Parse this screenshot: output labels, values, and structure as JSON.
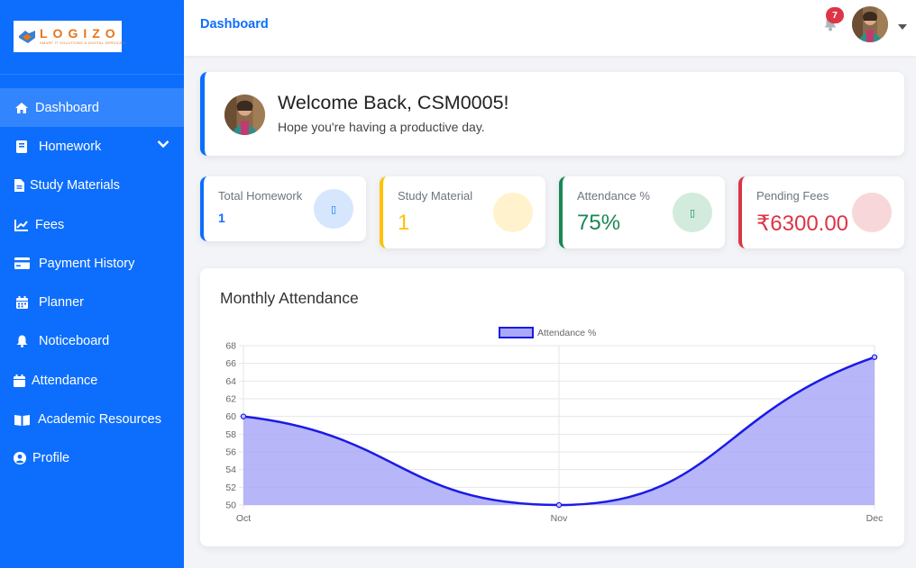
{
  "brand": {
    "name": "LOGIZO",
    "tagline": "SMART IT SOLUTIONS & DIGITAL SERVICES"
  },
  "sidebar": {
    "items": [
      {
        "label": "Dashboard",
        "icon": "home-icon",
        "active": true
      },
      {
        "label": "Homework",
        "icon": "book-icon",
        "expandable": true
      },
      {
        "label": "Study Materials",
        "icon": "file-icon"
      },
      {
        "label": "Fees",
        "icon": "chart-line-icon"
      },
      {
        "label": "Payment History",
        "icon": "credit-card-icon"
      },
      {
        "label": "Planner",
        "icon": "calendar-icon"
      },
      {
        "label": "Noticeboard",
        "icon": "bell-icon"
      },
      {
        "label": "Attendance",
        "icon": "calendar-check-icon"
      },
      {
        "label": "Academic Resources",
        "icon": "open-book-icon"
      },
      {
        "label": "Profile",
        "icon": "user-circle-icon"
      }
    ]
  },
  "topbar": {
    "title": "Dashboard",
    "notification_count": "7"
  },
  "welcome": {
    "title": "Welcome Back, CSM0005!",
    "subtitle": "Hope you're having a productive day."
  },
  "stats": [
    {
      "label": "Total Homework",
      "value": "1",
      "icon": "tasks-icon",
      "icon_glyph": "▯",
      "color": "#0d6efd"
    },
    {
      "label": "Study Material",
      "value": "1",
      "icon": "book-icon",
      "icon_glyph": "",
      "color": "#ffc107"
    },
    {
      "label": "Attendance %",
      "value": "75%",
      "icon": "calendar-icon",
      "icon_glyph": "▯",
      "color": "#198754"
    },
    {
      "label": "Pending Fees",
      "value": "₹6300.00",
      "icon": "money-icon",
      "icon_glyph": "",
      "color": "#dc3545"
    }
  ],
  "chart_data": {
    "type": "area",
    "title": "Monthly Attendance",
    "categories": [
      "Oct",
      "Nov",
      "Dec"
    ],
    "series": [
      {
        "name": "Attendance %",
        "values": [
          60,
          50,
          66.7
        ]
      }
    ],
    "ylim": [
      50,
      68
    ],
    "yticks": [
      "50",
      "52",
      "54",
      "56",
      "58",
      "60",
      "62",
      "64",
      "66",
      "68"
    ],
    "grid": true,
    "legend": "top",
    "line_color": "#1a1ae6",
    "fill_color": "#a9a9f8"
  }
}
